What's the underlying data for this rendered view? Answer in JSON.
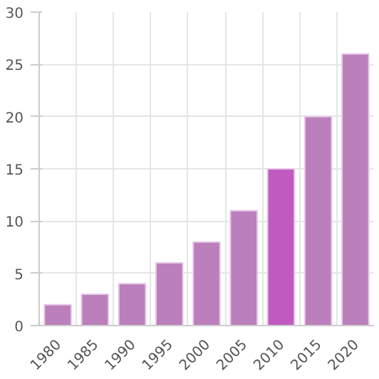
{
  "chart_data": {
    "type": "bar",
    "categories": [
      "1980",
      "1985",
      "1990",
      "1995",
      "2000",
      "2005",
      "2010",
      "2015",
      "2020"
    ],
    "values": [
      2,
      3,
      4,
      6,
      8,
      11,
      15,
      20,
      26
    ],
    "colors": [
      "#bb7fbb",
      "#bb7fbb",
      "#bb7fbb",
      "#bb7fbb",
      "#bb7fbb",
      "#bb7fbb",
      "#c05ac0",
      "#bb7fbb",
      "#bb7fbb"
    ],
    "ylim": [
      0,
      30
    ],
    "yticks": [
      0,
      5,
      10,
      15,
      20,
      25,
      30
    ],
    "grid": true
  }
}
